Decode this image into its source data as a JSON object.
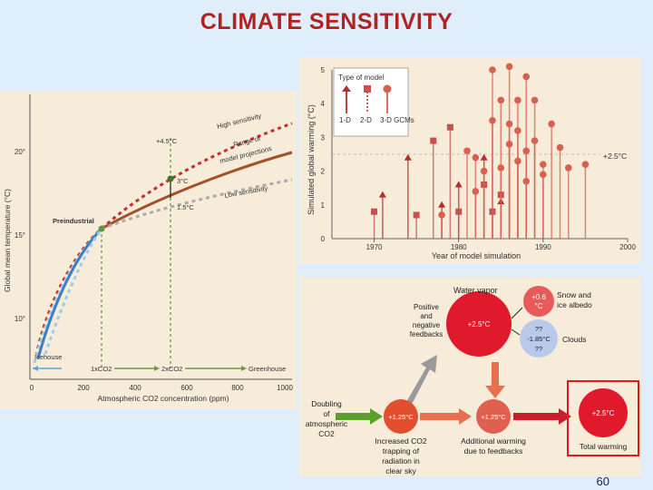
{
  "slide_title": "CLIMATE SENSITIVITY",
  "page_number": "60",
  "left_chart": {
    "ylabel": "Global mean temperature (°C)",
    "xlabel": "Atmospheric CO2 concentration (ppm)",
    "y_ticks": [
      "20°",
      "15°",
      "10°"
    ],
    "x_ticks": [
      "0",
      "200",
      "400",
      "600",
      "800",
      "1000"
    ],
    "labels": {
      "high": "High sensitivity",
      "range1": "Range of",
      "range2": "model projections",
      "low": "Low sensitivity",
      "t45": "+4.5°C",
      "t3": "3°C",
      "t15": "1.5°C",
      "preindustrial": "Preindustrial",
      "icehouse": "Icehouse",
      "x1": "1xCO2",
      "x2": "2xCO2",
      "greenhouse": "Greenhouse"
    }
  },
  "chart_data": {
    "type": "scatter",
    "title": "",
    "xlabel": "Year of model simulation",
    "ylabel": "Simulated global warming (°C)",
    "xlim": [
      1965,
      2000
    ],
    "ylim": [
      0,
      5
    ],
    "x_ticks": [
      "1970",
      "1980",
      "1990",
      "2000"
    ],
    "y_ticks": [
      "0",
      "1",
      "2",
      "3",
      "4",
      "5"
    ],
    "reference_line": {
      "y": 2.5,
      "label": "+2.5°C"
    },
    "legend": {
      "title": "Type of model",
      "entries": [
        "1-D",
        "2-D",
        "3-D GCMs"
      ]
    },
    "series": [
      {
        "name": "1-D",
        "marker": "triangle",
        "x": [
          1971,
          1974,
          1978,
          1980,
          1983,
          1985
        ],
        "y": [
          1.3,
          2.4,
          1.0,
          1.6,
          2.4,
          1.1
        ]
      },
      {
        "name": "2-D",
        "marker": "square",
        "x": [
          1970,
          1975,
          1977,
          1979,
          1980,
          1983,
          1984,
          1985
        ],
        "y": [
          0.8,
          0.7,
          2.9,
          3.3,
          0.8,
          1.6,
          0.8,
          1.3
        ]
      },
      {
        "name": "3-D GCMs",
        "marker": "circle",
        "x": [
          1978,
          1981,
          1982,
          1982,
          1983,
          1984,
          1984,
          1985,
          1985,
          1986,
          1986,
          1986,
          1987,
          1987,
          1987,
          1988,
          1988,
          1988,
          1989,
          1989,
          1990,
          1990,
          1991,
          1992,
          1993,
          1995
        ],
        "y": [
          0.7,
          2.6,
          1.4,
          2.4,
          2.0,
          5.0,
          3.5,
          4.1,
          2.1,
          5.1,
          3.4,
          2.8,
          4.1,
          3.2,
          2.3,
          4.8,
          2.6,
          1.7,
          4.1,
          2.9,
          2.2,
          1.9,
          3.4,
          2.7,
          2.1,
          2.2
        ]
      }
    ]
  },
  "feedback_diagram": {
    "water_vapor": "Water vapor",
    "snow1": "Snow and",
    "snow2": "ice albedo",
    "v06a": "+0.6",
    "v06b": "°C",
    "pos1": "Positive",
    "pos2": "and",
    "pos3": "negative",
    "pos4": "feedbacks",
    "c25": "+2.5°C",
    "q1": "??",
    "c185": "-1.85°C",
    "q2": "??",
    "clouds": "Clouds",
    "doubling1": "Doubling",
    "doubling2": "of",
    "doubling3": "atmospheric",
    "doubling4": "CO2",
    "c125a": "+1.25°C",
    "c125b": "+1.25°C",
    "c25b": "+2.5°C",
    "inc1": "Increased CO2",
    "inc2": "trapping of",
    "inc3": "radiation in",
    "inc4": "clear sky",
    "add1": "Additional warming",
    "add2": "due to feedbacks",
    "total": "Total warming"
  }
}
